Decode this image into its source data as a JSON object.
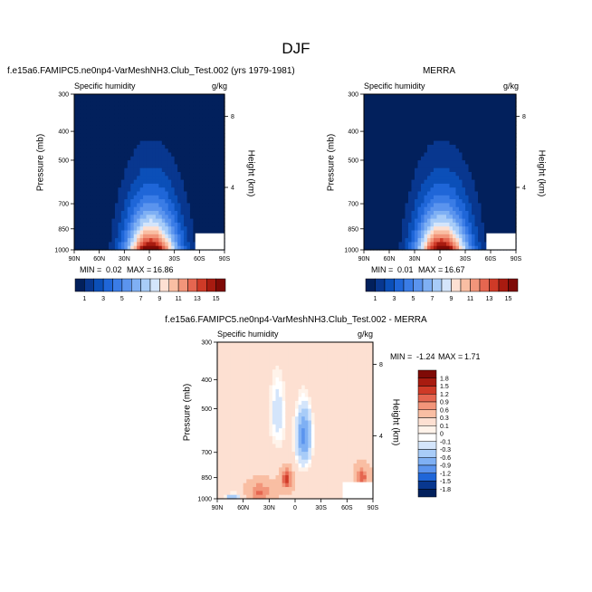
{
  "figure": {
    "title": "DJF"
  },
  "chart_data": [
    {
      "type": "heatmap",
      "title": "f.e15a6.FAMIPC5.ne0np4-VarMeshNH3.Club_Test.002 (yrs 1979-1981)",
      "left_label": "Specific humidity",
      "units": "g/kg",
      "xlabel": "",
      "ylabel": "Pressure (mb)",
      "y2label": "Height (km)",
      "x_ticks": [
        "90N",
        "60N",
        "30N",
        "0",
        "30S",
        "60S",
        "90S"
      ],
      "y_ticks": [
        "300",
        "400",
        "500",
        "700",
        "850",
        "1000"
      ],
      "y2_ticks": [
        "8",
        "4"
      ],
      "min_label": "MIN =",
      "min_value": "0.02",
      "max_label": "MAX =",
      "max_value": "16.86",
      "min": 0.02,
      "max": 16.86,
      "colorbar": {
        "orientation": "horizontal",
        "labels": [
          "1",
          "3",
          "5",
          "7",
          "9",
          "11",
          "13",
          "15"
        ],
        "levels": [
          1,
          2,
          3,
          4,
          5,
          6,
          7,
          8,
          9,
          10,
          11,
          12,
          13,
          14,
          15
        ],
        "colors": [
          "#02205c",
          "#08378f",
          "#0b4fb8",
          "#1f66d8",
          "#3a7ce6",
          "#5b94ee",
          "#7fb0f4",
          "#a8ccf8",
          "#d4e5fb",
          "#fde0d2",
          "#f9bea3",
          "#f2957a",
          "#e56650",
          "#cf3a27",
          "#a81b10",
          "#7f0a06"
        ]
      },
      "field": "positive",
      "peak_lat": -2,
      "peak_value": 16.86
    },
    {
      "type": "heatmap",
      "title": "MERRA",
      "left_label": "Specific humidity",
      "units": "g/kg",
      "xlabel": "",
      "ylabel": "Pressure (mb)",
      "y2label": "Height (km)",
      "x_ticks": [
        "90N",
        "60N",
        "30N",
        "0",
        "30S",
        "60S",
        "90S"
      ],
      "y_ticks": [
        "300",
        "400",
        "500",
        "700",
        "850",
        "1000"
      ],
      "y2_ticks": [
        "8",
        "4"
      ],
      "min_label": "MIN =",
      "min_value": "0.01",
      "max_label": "MAX =",
      "max_value": "16.67",
      "min": 0.01,
      "max": 16.67,
      "colorbar": {
        "orientation": "horizontal",
        "labels": [
          "1",
          "3",
          "5",
          "7",
          "9",
          "11",
          "13",
          "15"
        ],
        "levels": [
          1,
          2,
          3,
          4,
          5,
          6,
          7,
          8,
          9,
          10,
          11,
          12,
          13,
          14,
          15
        ],
        "colors": [
          "#02205c",
          "#08378f",
          "#0b4fb8",
          "#1f66d8",
          "#3a7ce6",
          "#5b94ee",
          "#7fb0f4",
          "#a8ccf8",
          "#d4e5fb",
          "#fde0d2",
          "#f9bea3",
          "#f2957a",
          "#e56650",
          "#cf3a27",
          "#a81b10",
          "#7f0a06"
        ]
      },
      "field": "positive",
      "peak_lat": -2,
      "peak_value": 16.67
    },
    {
      "type": "heatmap",
      "title": "f.e15a6.FAMIPC5.ne0np4-VarMeshNH3.Club_Test.002 - MERRA",
      "left_label": "Specific humidity",
      "units": "g/kg",
      "xlabel": "",
      "ylabel": "Pressure (mb)",
      "y2label": "Height (km)",
      "x_ticks": [
        "90N",
        "60N",
        "30N",
        "0",
        "30S",
        "60S",
        "90S"
      ],
      "y_ticks": [
        "300",
        "400",
        "500",
        "700",
        "850",
        "1000"
      ],
      "y2_ticks": [
        "8",
        "4"
      ],
      "min_label": "MIN =",
      "min_value": "-1.24",
      "max_label": "MAX =",
      "max_value": "1.71",
      "min": -1.24,
      "max": 1.71,
      "colorbar": {
        "orientation": "vertical",
        "labels": [
          "1.8",
          "1.5",
          "1.2",
          "0.9",
          "0.6",
          "0.3",
          "0.1",
          "0",
          "-0.1",
          "-0.3",
          "-0.6",
          "-0.9",
          "-1.2",
          "-1.5",
          "-1.8"
        ],
        "levels": [
          1.8,
          1.5,
          1.2,
          0.9,
          0.6,
          0.3,
          0.1,
          0,
          -0.1,
          -0.3,
          -0.6,
          -0.9,
          -1.2,
          -1.5,
          -1.8
        ],
        "colors": [
          "#7f0a06",
          "#a81b10",
          "#cf3a27",
          "#e56650",
          "#f2957a",
          "#f9bea3",
          "#fde0d2",
          "#fff3ea",
          "#ffffff",
          "#d4e5fb",
          "#a8ccf8",
          "#7fb0f4",
          "#5b94ee",
          "#1f66d8",
          "#08378f",
          "#02205c"
        ]
      },
      "field": "difference"
    }
  ]
}
